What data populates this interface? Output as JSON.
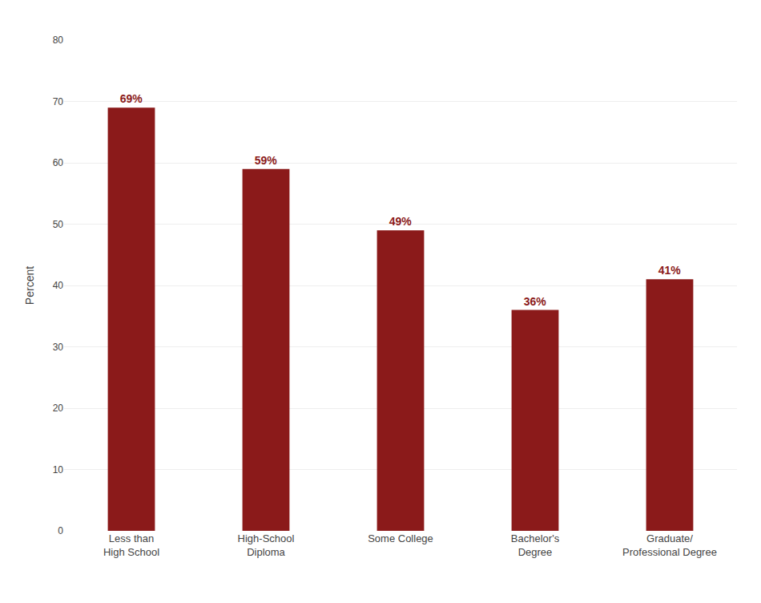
{
  "chart_data": {
    "type": "bar",
    "categories": [
      "Less than\nHigh School",
      "High-School\nDiploma",
      "Some College",
      "Bachelor's\nDegree",
      "Graduate/\nProfessional Degree"
    ],
    "values": [
      69,
      59,
      49,
      36,
      41
    ],
    "value_labels": [
      "69%",
      "59%",
      "49%",
      "36%",
      "41%"
    ],
    "data_labels": true,
    "color": "#8B1A1A",
    "ylabel": "Percent",
    "ylim": [
      0,
      80
    ],
    "yticks": [
      0,
      10,
      20,
      30,
      40,
      50,
      60,
      70,
      80
    ],
    "grid": true
  }
}
